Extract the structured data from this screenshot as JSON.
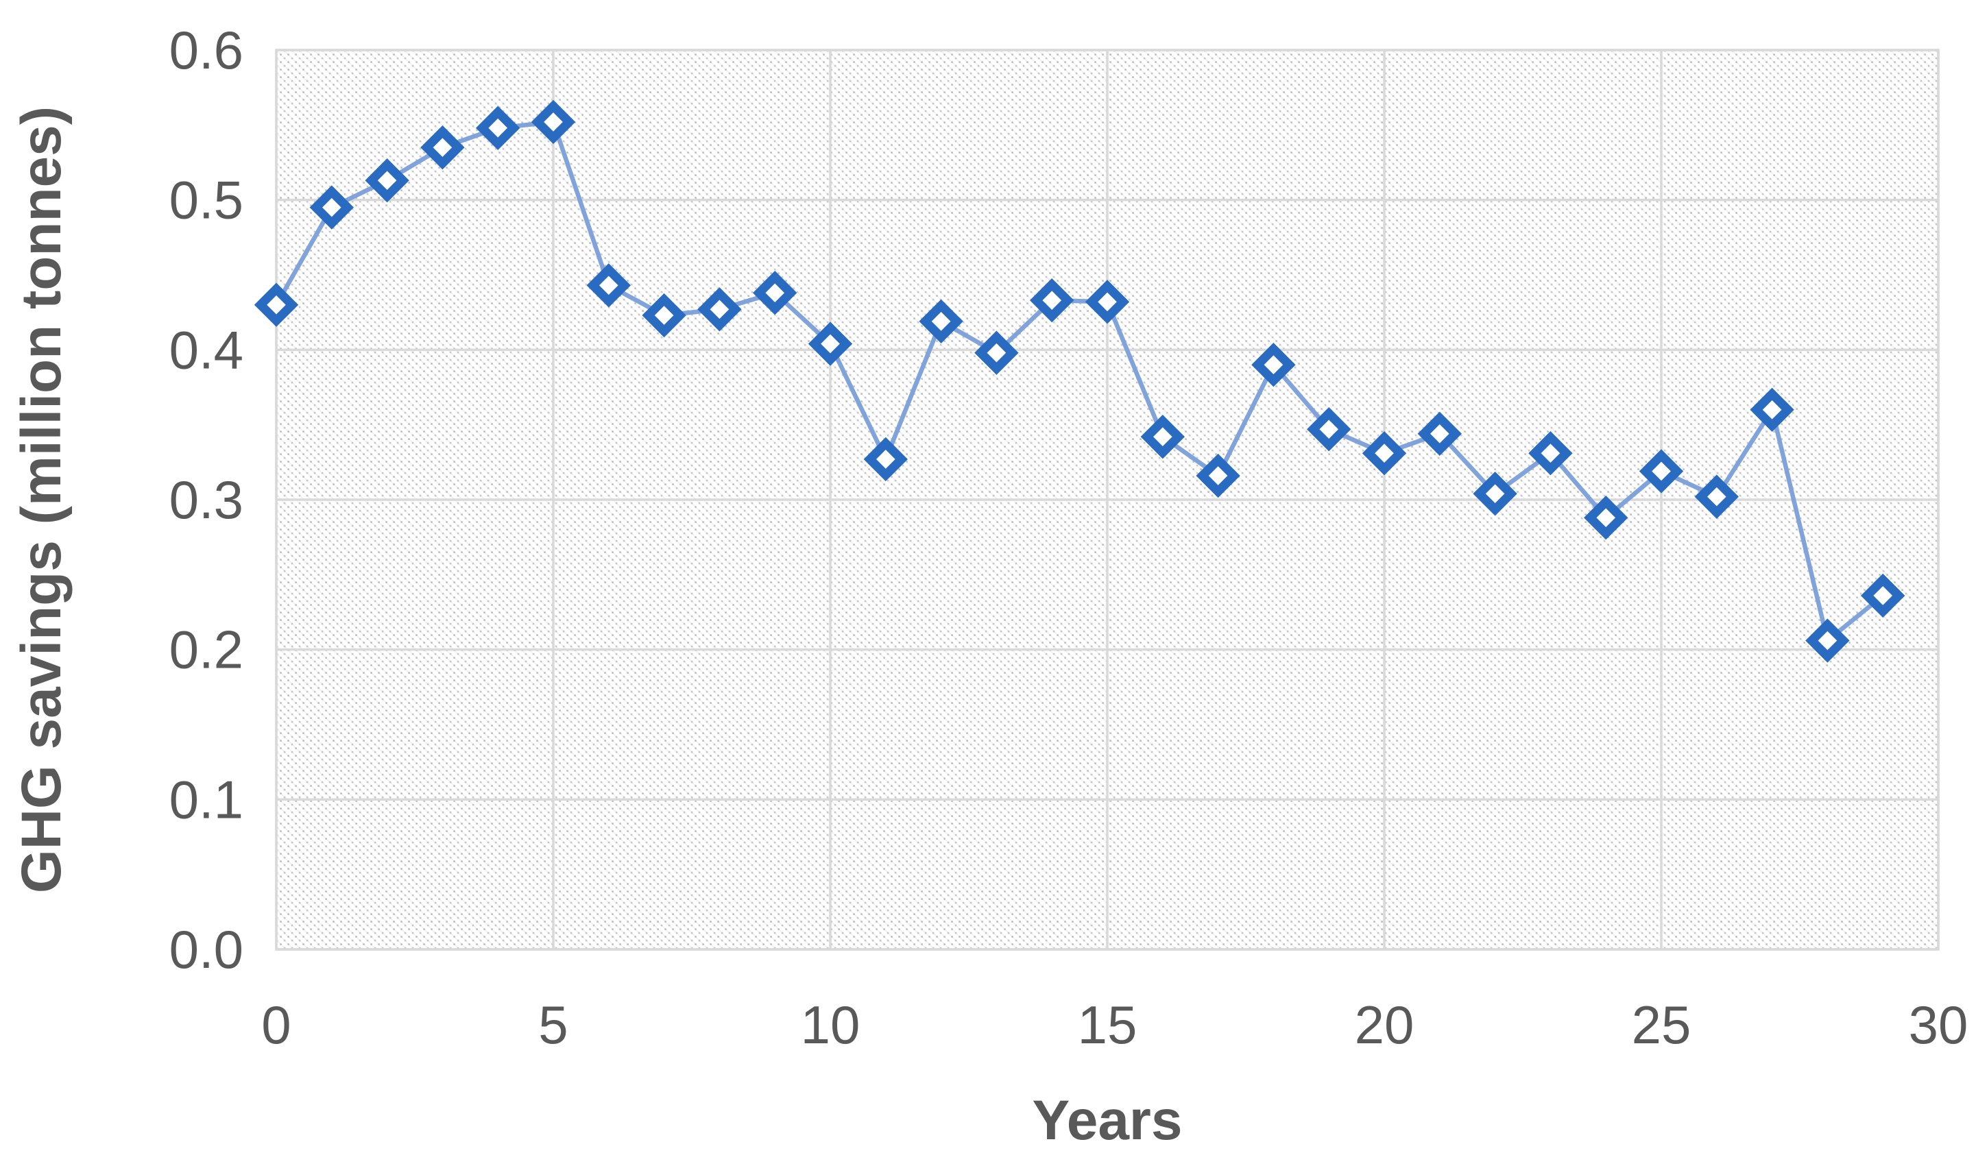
{
  "chart_data": {
    "type": "line",
    "title": "",
    "xlabel": "Years",
    "ylabel": "GHG savings (million tonnes)",
    "x": [
      0,
      1,
      2,
      3,
      4,
      5,
      6,
      7,
      8,
      9,
      10,
      11,
      12,
      13,
      14,
      15,
      16,
      17,
      18,
      19,
      20,
      21,
      22,
      23,
      24,
      25,
      26,
      27,
      28,
      29
    ],
    "series": [
      {
        "name": "GHG savings",
        "values": [
          0.43,
          0.495,
          0.513,
          0.535,
          0.548,
          0.552,
          0.443,
          0.423,
          0.427,
          0.438,
          0.404,
          0.327,
          0.419,
          0.398,
          0.433,
          0.432,
          0.342,
          0.316,
          0.39,
          0.347,
          0.331,
          0.344,
          0.304,
          0.331,
          0.288,
          0.319,
          0.302,
          0.36,
          0.206,
          0.236
        ]
      }
    ],
    "xlim": [
      0,
      30
    ],
    "ylim": [
      0.0,
      0.6
    ],
    "x_ticks": [
      "0",
      "5",
      "10",
      "15",
      "20",
      "25",
      "30"
    ],
    "y_ticks": [
      "0.0",
      "0.1",
      "0.2",
      "0.3",
      "0.4",
      "0.5",
      "0.6"
    ],
    "grid": "on",
    "legend": "none",
    "marker": "diamond",
    "plot_fill": "diagonal-dot-hatch",
    "colors": {
      "line": "#7FA3DA",
      "marker_stroke": "#2A6BC2",
      "marker_fill": "#FFFFFF",
      "gridline": "#D9D9D9",
      "hatch_dot": "#BFBFBF",
      "text": "#595959",
      "background": "#FFFFFF"
    }
  }
}
